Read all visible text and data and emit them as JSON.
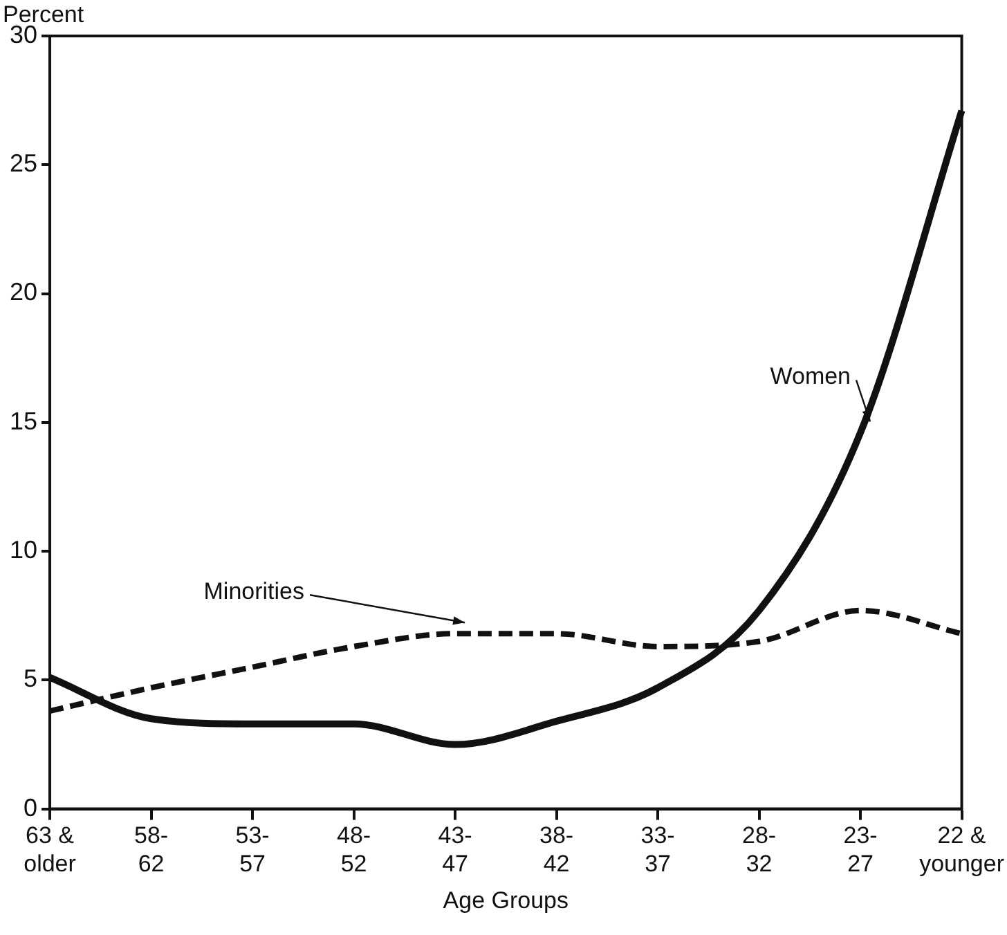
{
  "chart_data": {
    "type": "line",
    "xlabel": "Age Groups",
    "ylabel": "Percent",
    "categories": [
      "63 &\nolder",
      "58-\n62",
      "53-\n57",
      "48-\n52",
      "43-\n47",
      "38-\n42",
      "33-\n37",
      "28-\n32",
      "23-\n27",
      "22 &\nyounger"
    ],
    "series": [
      {
        "name": "Women",
        "color": "#111111",
        "line_style": "solid",
        "values": [
          5.1,
          3.5,
          3.3,
          3.3,
          2.5,
          3.4,
          4.7,
          7.7,
          14.6,
          27.1
        ]
      },
      {
        "name": "Minorities",
        "color": "#111111",
        "line_style": "dashed",
        "values": [
          3.8,
          4.7,
          5.5,
          6.3,
          6.8,
          6.8,
          6.3,
          6.5,
          7.7,
          6.8
        ]
      }
    ],
    "ylim": [
      0,
      30
    ],
    "yticks": [
      0,
      5,
      10,
      15,
      20,
      25,
      30
    ],
    "grid": false,
    "legend": false,
    "marker": "none"
  }
}
